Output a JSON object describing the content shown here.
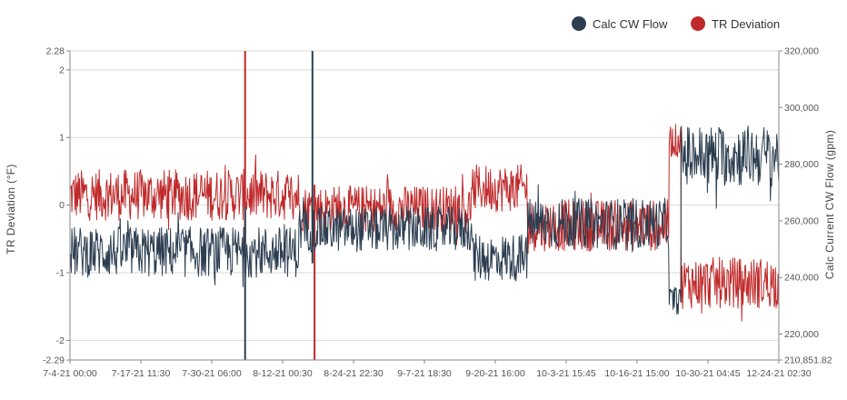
{
  "chart_data": {
    "type": "line",
    "legend_position": "top-right",
    "grid": true,
    "x_ticks": [
      "7-4-21 00:00",
      "7-17-21 11:30",
      "7-30-21 06:00",
      "8-12-21 00:30",
      "8-24-21 22:30",
      "9-7-21 18:30",
      "9-20-21 16:00",
      "10-3-21 15:45",
      "10-16-21 15:00",
      "10-30-21 04:45",
      "12-24-21 02:30"
    ],
    "y_left": {
      "label": "TR Deviation (°F)",
      "min": -2.29,
      "max": 2.28,
      "tick_values": [
        -2.29,
        -2,
        -1,
        0,
        1,
        2,
        2.28
      ],
      "tick_labels": [
        "-2.29",
        "-2",
        "-1",
        "0",
        "1",
        "2",
        "2.28"
      ]
    },
    "y_right": {
      "label": "Calc Current CW Flow (gpm)",
      "min": 210851.82,
      "max": 320000,
      "tick_values": [
        210851.82,
        220000,
        240000,
        260000,
        280000,
        300000,
        320000
      ],
      "tick_labels": [
        "210,851.82",
        "220,000",
        "240,000",
        "260,000",
        "280,000",
        "300,000",
        "320,000"
      ]
    },
    "series": [
      {
        "name": "TR Deviation",
        "color": "#c0292a",
        "axis": "left",
        "segments": [
          {
            "from": 0.0,
            "to": 0.323,
            "mean": 0.15,
            "amp": 0.38
          },
          {
            "from": 0.323,
            "to": 0.568,
            "mean": -0.05,
            "amp": 0.34
          },
          {
            "from": 0.568,
            "to": 0.645,
            "mean": 0.25,
            "amp": 0.35
          },
          {
            "from": 0.645,
            "to": 0.845,
            "mean": -0.3,
            "amp": 0.38
          },
          {
            "from": 0.845,
            "to": 0.862,
            "mean": 0.95,
            "amp": 0.25
          },
          {
            "from": 0.862,
            "to": 1.0,
            "mean": -1.15,
            "amp": 0.38
          }
        ],
        "spikes": [
          {
            "at": 0.247,
            "values": [
              2.28,
              -1.0
            ]
          },
          {
            "at": 0.345,
            "values": [
              -2.29,
              0.3
            ]
          }
        ]
      },
      {
        "name": "Calc CW Flow",
        "color": "#2c3e50",
        "axis": "right",
        "segments": [
          {
            "from": 0.0,
            "to": 0.323,
            "mean": 249000,
            "amp": 9000
          },
          {
            "from": 0.323,
            "to": 0.568,
            "mean": 257000,
            "amp": 8000
          },
          {
            "from": 0.568,
            "to": 0.645,
            "mean": 247000,
            "amp": 8500
          },
          {
            "from": 0.645,
            "to": 0.845,
            "mean": 259000,
            "amp": 9000
          },
          {
            "from": 0.845,
            "to": 0.862,
            "mean": 232000,
            "amp": 5000
          },
          {
            "from": 0.862,
            "to": 1.0,
            "mean": 283000,
            "amp": 11000
          }
        ],
        "spikes": [
          {
            "at": 0.247,
            "values": [
              210851.82,
              265000
            ]
          },
          {
            "at": 0.342,
            "values": [
              320000,
              245000
            ]
          }
        ]
      }
    ]
  }
}
